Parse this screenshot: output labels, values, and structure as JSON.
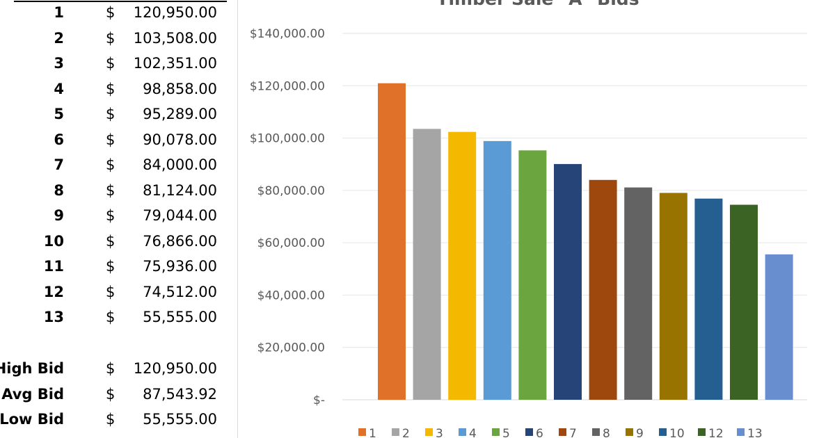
{
  "table": {
    "rows": [
      {
        "label": "1",
        "currency": "$",
        "value": "120,950.00"
      },
      {
        "label": "2",
        "currency": "$",
        "value": "103,508.00"
      },
      {
        "label": "3",
        "currency": "$",
        "value": "102,351.00"
      },
      {
        "label": "4",
        "currency": "$",
        "value": "98,858.00"
      },
      {
        "label": "5",
        "currency": "$",
        "value": "95,289.00"
      },
      {
        "label": "6",
        "currency": "$",
        "value": "90,078.00"
      },
      {
        "label": "7",
        "currency": "$",
        "value": "84,000.00"
      },
      {
        "label": "8",
        "currency": "$",
        "value": "81,124.00"
      },
      {
        "label": "9",
        "currency": "$",
        "value": "79,044.00"
      },
      {
        "label": "10",
        "currency": "$",
        "value": "76,866.00"
      },
      {
        "label": "11",
        "currency": "$",
        "value": "75,936.00"
      },
      {
        "label": "12",
        "currency": "$",
        "value": "74,512.00"
      },
      {
        "label": "13",
        "currency": "$",
        "value": "55,555.00"
      }
    ],
    "summary": [
      {
        "label": "High Bid",
        "currency": "$",
        "value": "120,950.00"
      },
      {
        "label": "Avg Bid",
        "currency": "$",
        "value": "87,543.92"
      },
      {
        "label": "Low Bid",
        "currency": "$",
        "value": "55,555.00"
      }
    ]
  },
  "chart_data": {
    "type": "bar",
    "title": "Timber Sale \"A\" Bids",
    "categories": [
      "1",
      "2",
      "3",
      "4",
      "5",
      "6",
      "7",
      "8",
      "9",
      "10",
      "12",
      "13"
    ],
    "values": [
      120950,
      103508,
      102351,
      98858,
      95289,
      90078,
      84000,
      81124,
      79044,
      76866,
      74512,
      55555
    ],
    "colors": [
      "#e07128",
      "#a5a5a5",
      "#f5b800",
      "#5b9bd5",
      "#6aa540",
      "#264478",
      "#9e480e",
      "#636363",
      "#997300",
      "#255e91",
      "#3b6324",
      "#698ed0"
    ],
    "ylim": [
      0,
      140000
    ],
    "yticks": [
      "$-",
      "$20,000.00",
      "$40,000.00",
      "$60,000.00",
      "$80,000.00",
      "$100,000.00",
      "$120,000.00",
      "$140,000.00"
    ],
    "grid": true,
    "legend": "bottom"
  }
}
